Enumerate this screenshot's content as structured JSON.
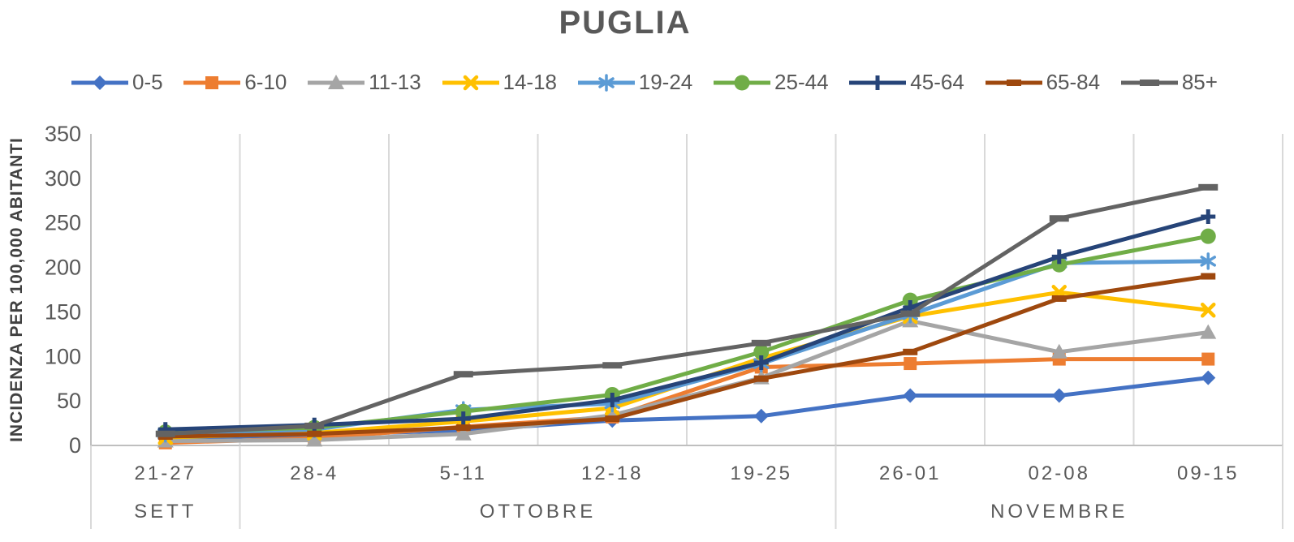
{
  "title": "PUGLIA",
  "chart_data": {
    "type": "line",
    "title": "PUGLIA",
    "ylabel": "INCIDENZA PER 100,000 ABITANTI",
    "xlabel": "",
    "ylim": [
      0,
      350
    ],
    "ytick_step": 50,
    "y_ticks": [
      0,
      50,
      100,
      150,
      200,
      250,
      300,
      350
    ],
    "grid": "vertical category separators only, no horizontal gridlines",
    "legend_position": "top",
    "categories": [
      "21-27",
      "28-4",
      "5-11",
      "12-18",
      "19-25",
      "26-01",
      "02-08",
      "09-15"
    ],
    "month_groups": [
      {
        "label": "SETT",
        "span": 1
      },
      {
        "label": "OTTOBRE",
        "span": 4
      },
      {
        "label": "NOVEMBRE",
        "span": 3
      }
    ],
    "series": [
      {
        "name": "0-5",
        "color": "#4472C4",
        "marker": "diamond",
        "values": [
          8,
          12,
          17,
          28,
          33,
          56,
          56,
          76
        ]
      },
      {
        "name": "6-10",
        "color": "#ED7D31",
        "marker": "square",
        "values": [
          3,
          8,
          21,
          32,
          88,
          92,
          97,
          97
        ]
      },
      {
        "name": "11-13",
        "color": "#A5A5A5",
        "marker": "triangle",
        "values": [
          5,
          6,
          13,
          34,
          76,
          140,
          105,
          127
        ]
      },
      {
        "name": "14-18",
        "color": "#FFC000",
        "marker": "x",
        "values": [
          9,
          14,
          27,
          42,
          98,
          145,
          172,
          152
        ]
      },
      {
        "name": "19-24",
        "color": "#5B9BD5",
        "marker": "asterisk",
        "values": [
          13,
          18,
          40,
          47,
          92,
          147,
          205,
          207
        ]
      },
      {
        "name": "25-44",
        "color": "#70AD47",
        "marker": "circle",
        "values": [
          15,
          20,
          38,
          57,
          105,
          163,
          203,
          235
        ]
      },
      {
        "name": "45-64",
        "color": "#264478",
        "marker": "plus",
        "values": [
          18,
          23,
          30,
          51,
          93,
          155,
          212,
          257
        ]
      },
      {
        "name": "65-84",
        "color": "#9E480E",
        "marker": "dash",
        "values": [
          10,
          13,
          20,
          30,
          75,
          105,
          165,
          190
        ]
      },
      {
        "name": "85+",
        "color": "#636363",
        "marker": "long-dash",
        "values": [
          13,
          22,
          80,
          90,
          115,
          148,
          255,
          290
        ]
      }
    ],
    "axis_color": "#BFBFBF",
    "gridline_color": "#D9D9D9",
    "text_color": "#595959"
  }
}
